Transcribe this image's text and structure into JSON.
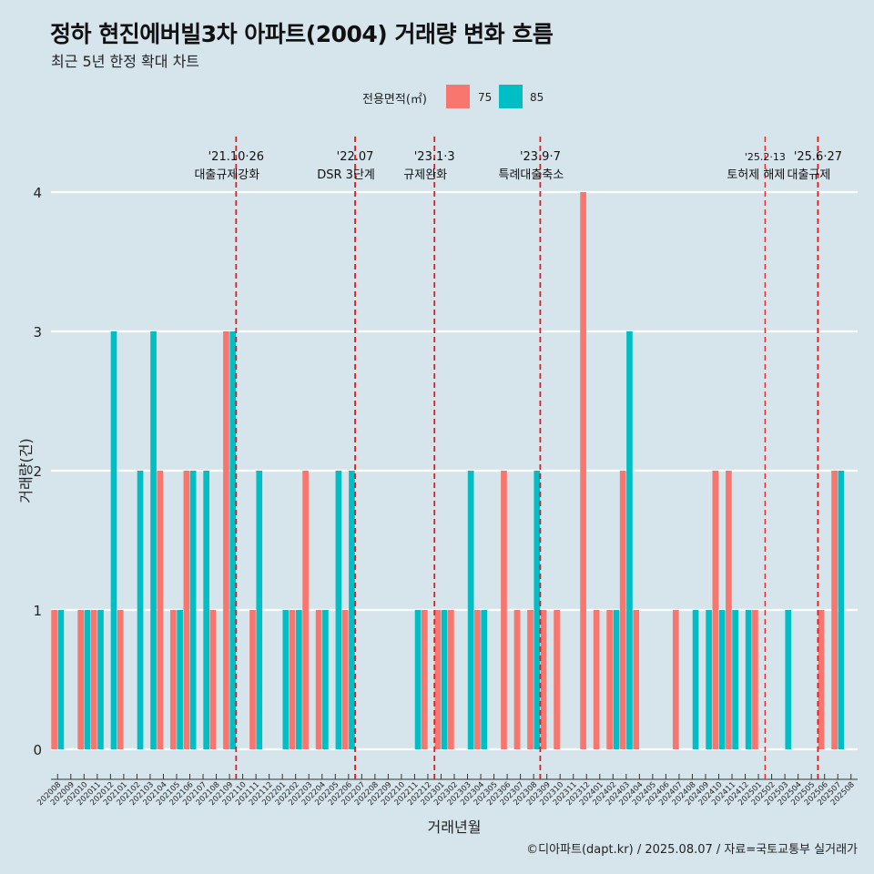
{
  "title": "정하 현진에버빌3차 아파트(2004) 거래량 변화 흐름",
  "subtitle": "최근 5년 한정 확대 차트",
  "caption": "©디아파트(dapt.kr) / 2025.08.07 / 자료=국토교통부 실거래가",
  "legend": {
    "title": "전용면적(㎡)",
    "items": [
      {
        "label": "75",
        "color": "#F8766D"
      },
      {
        "label": "85",
        "color": "#00BFC4"
      }
    ]
  },
  "chart_data": {
    "type": "bar",
    "xlabel": "거래년월",
    "ylabel": "거래량(건)",
    "ylim": [
      0,
      4
    ],
    "yticks": [
      0,
      1,
      2,
      3,
      4
    ],
    "grid": true,
    "legend_position": "top",
    "categories": [
      "202008",
      "202009",
      "202010",
      "202011",
      "202012",
      "202101",
      "202102",
      "202103",
      "202104",
      "202105",
      "202106",
      "202107",
      "202108",
      "202109",
      "202110",
      "202111",
      "202112",
      "202201",
      "202202",
      "202203",
      "202204",
      "202205",
      "202206",
      "202207",
      "202208",
      "202209",
      "202210",
      "202211",
      "202212",
      "202301",
      "202302",
      "202303",
      "202304",
      "202305",
      "202306",
      "202307",
      "202308",
      "202309",
      "202310",
      "202311",
      "202312",
      "202401",
      "202402",
      "202403",
      "202404",
      "202405",
      "202406",
      "202407",
      "202408",
      "202409",
      "202410",
      "202411",
      "202412",
      "202501",
      "202502",
      "202503",
      "202504",
      "202505",
      "202506",
      "202507",
      "202508"
    ],
    "series": [
      {
        "name": "75",
        "color": "#F8766D",
        "values": [
          1,
          0,
          1,
          1,
          0,
          1,
          0,
          0,
          2,
          1,
          2,
          0,
          1,
          3,
          0,
          1,
          0,
          0,
          1,
          2,
          1,
          0,
          1,
          0,
          0,
          0,
          0,
          0,
          1,
          1,
          1,
          0,
          1,
          0,
          2,
          1,
          1,
          1,
          1,
          0,
          4,
          1,
          1,
          2,
          1,
          0,
          0,
          1,
          0,
          0,
          2,
          2,
          0,
          1,
          0,
          0,
          0,
          0,
          1,
          2,
          0
        ]
      },
      {
        "name": "85",
        "color": "#00BFC4",
        "values": [
          1,
          0,
          1,
          1,
          3,
          0,
          2,
          3,
          0,
          1,
          2,
          2,
          0,
          3,
          0,
          2,
          0,
          1,
          1,
          0,
          1,
          2,
          2,
          0,
          0,
          0,
          0,
          1,
          0,
          1,
          0,
          2,
          1,
          0,
          0,
          0,
          2,
          0,
          0,
          0,
          0,
          0,
          1,
          3,
          0,
          0,
          0,
          0,
          1,
          1,
          1,
          1,
          1,
          0,
          0,
          1,
          0,
          0,
          0,
          2,
          0
        ]
      }
    ],
    "annotations": [
      {
        "month": "202110",
        "date": "'21.10·26",
        "label": "대출규제강화"
      },
      {
        "month": "202207",
        "date": "'22.07",
        "label": "DSR 3단계"
      },
      {
        "month": "202301",
        "date": "'23.1·3",
        "label": "규제완화"
      },
      {
        "month": "202309",
        "date": "'23.9·7",
        "label": "특례대출축소"
      },
      {
        "month": "202502",
        "date": "'25.2·13",
        "label": "토허제 해제"
      },
      {
        "month": "202506",
        "date": "'25.6·27",
        "label": "대출규제"
      }
    ]
  }
}
